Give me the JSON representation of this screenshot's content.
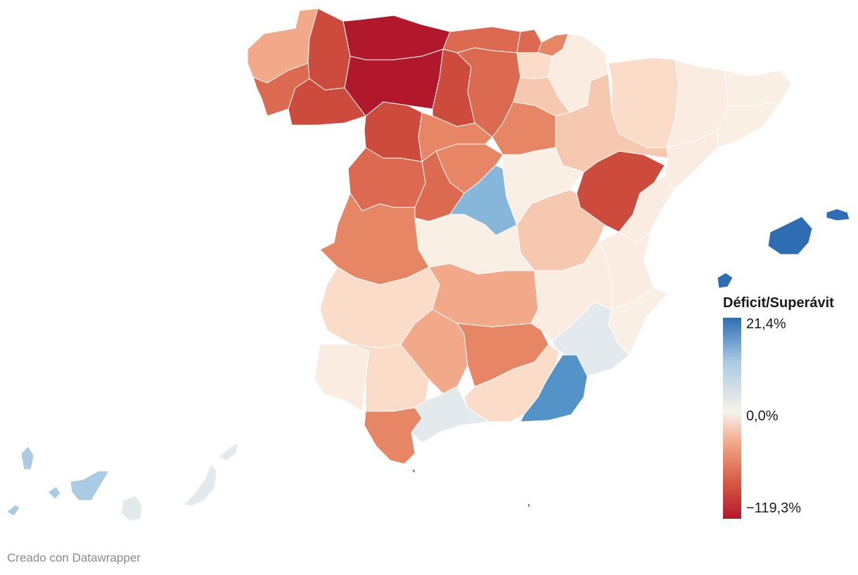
{
  "legend": {
    "title": "Déficit/Superávit",
    "max_label": "21,4%",
    "mid_label": "0,0%",
    "min_label": "−119,3%",
    "max_value": 21.4,
    "mid_value": 0.0,
    "min_value": -119.3,
    "colors": {
      "max": "#2e6db3",
      "light_blue": "#a9cbe3",
      "mid": "#f7f2ea",
      "light_red": "#f2a98a",
      "red": "#d65a45",
      "min": "#b2182b"
    }
  },
  "credit": "Creado con Datawrapper",
  "colors": {
    "deep_red": "#b2182b",
    "red": "#cd4b3c",
    "med_red": "#db6a50",
    "orange_red": "#e78665",
    "salmon": "#f2a98a",
    "light_salmon": "#f7c8b0",
    "pale_salmon": "#fbdcc9",
    "cream": "#faece0",
    "very_pale": "#f9efe4",
    "blue_grey": "#e3eaee",
    "light_blue": "#a9cbe3",
    "med_blue": "#86b6d9",
    "blue": "#5393c8",
    "deep_blue": "#2e6db3"
  },
  "regions": [
    {
      "name": "A Coruña",
      "color": "salmon"
    },
    {
      "name": "Lugo",
      "color": "red"
    },
    {
      "name": "Pontevedra",
      "color": "med_red"
    },
    {
      "name": "Ourense",
      "color": "red"
    },
    {
      "name": "Asturias",
      "color": "deep_red"
    },
    {
      "name": "León",
      "color": "deep_red"
    },
    {
      "name": "Zamora",
      "color": "red"
    },
    {
      "name": "Cantabria",
      "color": "med_red"
    },
    {
      "name": "Palencia",
      "color": "red"
    },
    {
      "name": "Burgos",
      "color": "med_red"
    },
    {
      "name": "Bizkaia",
      "color": "med_red"
    },
    {
      "name": "Gipuzkoa",
      "color": "orange_red"
    },
    {
      "name": "Araba",
      "color": "pale_salmon"
    },
    {
      "name": "Navarra",
      "color": "cream"
    },
    {
      "name": "La Rioja",
      "color": "light_salmon"
    },
    {
      "name": "Huesca",
      "color": "pale_salmon"
    },
    {
      "name": "Lleida",
      "color": "cream"
    },
    {
      "name": "Girona",
      "color": "very_pale"
    },
    {
      "name": "Barcelona",
      "color": "very_pale"
    },
    {
      "name": "Tarragona",
      "color": "cream"
    },
    {
      "name": "Zaragoza",
      "color": "light_salmon"
    },
    {
      "name": "Soria",
      "color": "orange_red"
    },
    {
      "name": "Valladolid",
      "color": "orange_red"
    },
    {
      "name": "Segovia",
      "color": "orange_red"
    },
    {
      "name": "Salamanca",
      "color": "med_red"
    },
    {
      "name": "Ávila",
      "color": "med_red"
    },
    {
      "name": "Madrid",
      "color": "med_blue"
    },
    {
      "name": "Guadalajara",
      "color": "very_pale"
    },
    {
      "name": "Teruel",
      "color": "red"
    },
    {
      "name": "Castellón",
      "color": "cream"
    },
    {
      "name": "Cuenca",
      "color": "light_salmon"
    },
    {
      "name": "Toledo",
      "color": "very_pale"
    },
    {
      "name": "Cáceres",
      "color": "orange_red"
    },
    {
      "name": "Badajoz",
      "color": "pale_salmon"
    },
    {
      "name": "Ciudad Real",
      "color": "salmon"
    },
    {
      "name": "Albacete",
      "color": "cream"
    },
    {
      "name": "Valencia",
      "color": "cream"
    },
    {
      "name": "Alicante",
      "color": "very_pale"
    },
    {
      "name": "Murcia",
      "color": "blue_grey"
    },
    {
      "name": "Huelva",
      "color": "cream"
    },
    {
      "name": "Sevilla",
      "color": "pale_salmon"
    },
    {
      "name": "Córdoba",
      "color": "salmon"
    },
    {
      "name": "Jaén",
      "color": "orange_red"
    },
    {
      "name": "Granada",
      "color": "pale_salmon"
    },
    {
      "name": "Almería",
      "color": "blue"
    },
    {
      "name": "Málaga",
      "color": "blue_grey"
    },
    {
      "name": "Cádiz",
      "color": "orange_red"
    },
    {
      "name": "Mallorca",
      "color": "deep_blue"
    },
    {
      "name": "Menorca",
      "color": "deep_blue"
    },
    {
      "name": "Ibiza",
      "color": "deep_blue"
    },
    {
      "name": "La Palma",
      "color": "light_blue"
    },
    {
      "name": "La Gomera",
      "color": "light_blue"
    },
    {
      "name": "El Hierro",
      "color": "light_blue"
    },
    {
      "name": "Tenerife",
      "color": "light_blue"
    },
    {
      "name": "Gran Canaria",
      "color": "blue_grey"
    },
    {
      "name": "Fuerteventura",
      "color": "blue_grey"
    },
    {
      "name": "Lanzarote",
      "color": "blue_grey"
    },
    {
      "name": "Ceuta",
      "color": "blue"
    },
    {
      "name": "Melilla",
      "color": "deep_blue"
    }
  ]
}
